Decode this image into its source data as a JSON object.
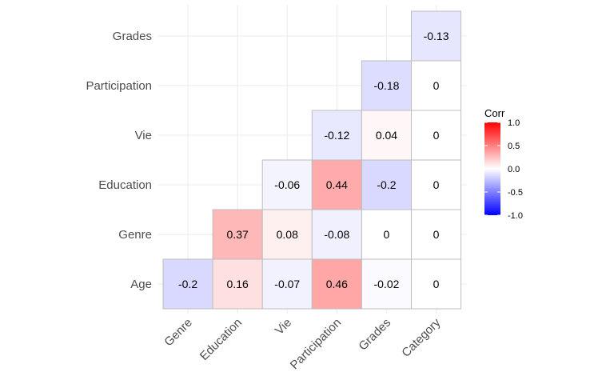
{
  "chart_data": {
    "type": "heatmap",
    "x_categories": [
      "Genre",
      "Education",
      "Vie",
      "Participation",
      "Grades",
      "Category"
    ],
    "y_categories": [
      "Age",
      "Genre",
      "Education",
      "Vie",
      "Participation",
      "Grades"
    ],
    "cells": [
      {
        "x": "Genre",
        "y": "Age",
        "value": -0.2,
        "label": "-0.2"
      },
      {
        "x": "Education",
        "y": "Age",
        "value": 0.16,
        "label": "0.16"
      },
      {
        "x": "Vie",
        "y": "Age",
        "value": -0.07,
        "label": "-0.07"
      },
      {
        "x": "Participation",
        "y": "Age",
        "value": 0.46,
        "label": "0.46"
      },
      {
        "x": "Grades",
        "y": "Age",
        "value": -0.02,
        "label": "-0.02"
      },
      {
        "x": "Category",
        "y": "Age",
        "value": 0,
        "label": "0"
      },
      {
        "x": "Education",
        "y": "Genre",
        "value": 0.37,
        "label": "0.37"
      },
      {
        "x": "Vie",
        "y": "Genre",
        "value": 0.08,
        "label": "0.08"
      },
      {
        "x": "Participation",
        "y": "Genre",
        "value": -0.08,
        "label": "-0.08"
      },
      {
        "x": "Grades",
        "y": "Genre",
        "value": 0,
        "label": "0"
      },
      {
        "x": "Category",
        "y": "Genre",
        "value": 0,
        "label": "0"
      },
      {
        "x": "Vie",
        "y": "Education",
        "value": -0.06,
        "label": "-0.06"
      },
      {
        "x": "Participation",
        "y": "Education",
        "value": 0.44,
        "label": "0.44"
      },
      {
        "x": "Grades",
        "y": "Education",
        "value": -0.2,
        "label": "-0.2"
      },
      {
        "x": "Category",
        "y": "Education",
        "value": 0,
        "label": "0"
      },
      {
        "x": "Participation",
        "y": "Vie",
        "value": -0.12,
        "label": "-0.12"
      },
      {
        "x": "Grades",
        "y": "Vie",
        "value": 0.04,
        "label": "0.04"
      },
      {
        "x": "Category",
        "y": "Vie",
        "value": 0,
        "label": "0"
      },
      {
        "x": "Grades",
        "y": "Participation",
        "value": -0.18,
        "label": "-0.18"
      },
      {
        "x": "Category",
        "y": "Participation",
        "value": 0,
        "label": "0"
      },
      {
        "x": "Category",
        "y": "Grades",
        "value": -0.13,
        "label": "-0.13"
      }
    ],
    "legend": {
      "title": "Corr",
      "ticks": [
        "1.0",
        "0.5",
        "0.0",
        "-0.5",
        "-1.0"
      ],
      "tick_values": [
        1.0,
        0.5,
        0.0,
        -0.5,
        -1.0
      ],
      "range": [
        -1.0,
        1.0
      ],
      "placement": "right"
    },
    "color_scale": {
      "low": "#0000ff",
      "mid": "#ffffff",
      "high": "#ff0000"
    },
    "grid": true,
    "cell_border_color": "#bdbdbd"
  }
}
